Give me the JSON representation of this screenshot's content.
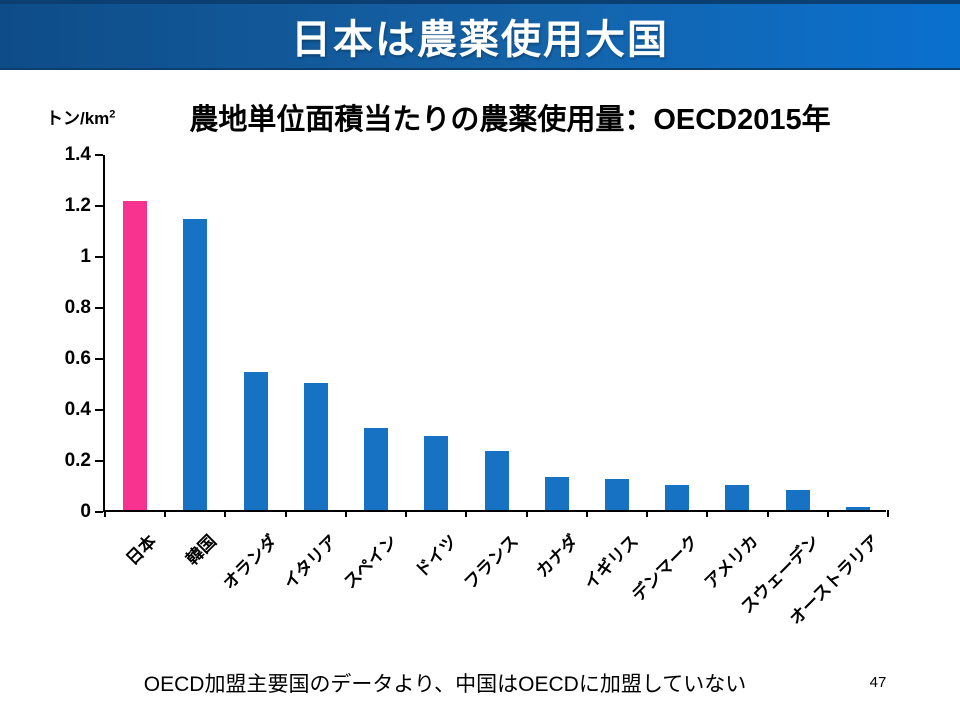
{
  "banner": {
    "title": "日本は農薬使用大国"
  },
  "chart": {
    "title": "農地単位面積当たりの農薬使用量：OECD2015年",
    "unit_label": "トン/km",
    "unit_sup": "2"
  },
  "chart_data": {
    "type": "bar",
    "title": "農地単位面積当たりの農薬使用量：OECD2015年",
    "ylabel": "トン/km2",
    "xlabel": "",
    "categories": [
      "日本",
      "韓国",
      "オランダ",
      "イタリア",
      "スペイン",
      "ドイツ",
      "フランス",
      "カナダ",
      "イギリス",
      "デンマーク",
      "アメリカ",
      "スウェーデン",
      "オーストラリア"
    ],
    "values": [
      1.21,
      1.14,
      0.54,
      0.5,
      0.32,
      0.29,
      0.23,
      0.13,
      0.12,
      0.1,
      0.1,
      0.08,
      0.01
    ],
    "ylim": [
      0,
      1.4
    ],
    "yticks": [
      0,
      0.2,
      0.4,
      0.6,
      0.8,
      1,
      1.2,
      1.4
    ],
    "ytick_labels": [
      "0",
      "0.2",
      "0.4",
      "0.6",
      "0.8",
      "1",
      "1.2",
      "1.4"
    ],
    "grid": false,
    "legend": false,
    "bar_color": "#1772C4",
    "highlight_color": "#F7338F",
    "highlight_index": 0
  },
  "colors": {
    "banner_gradient_left": "#0E4C88",
    "banner_gradient_right": "#0A70CF",
    "banner_border_top": "#0B3F72",
    "bar_blue": "#1772C4",
    "bar_pink": "#F7338F"
  },
  "footer": {
    "note": "OECD加盟主要国のデータより、中国はOECDに加盟していない",
    "page_number": "47"
  }
}
